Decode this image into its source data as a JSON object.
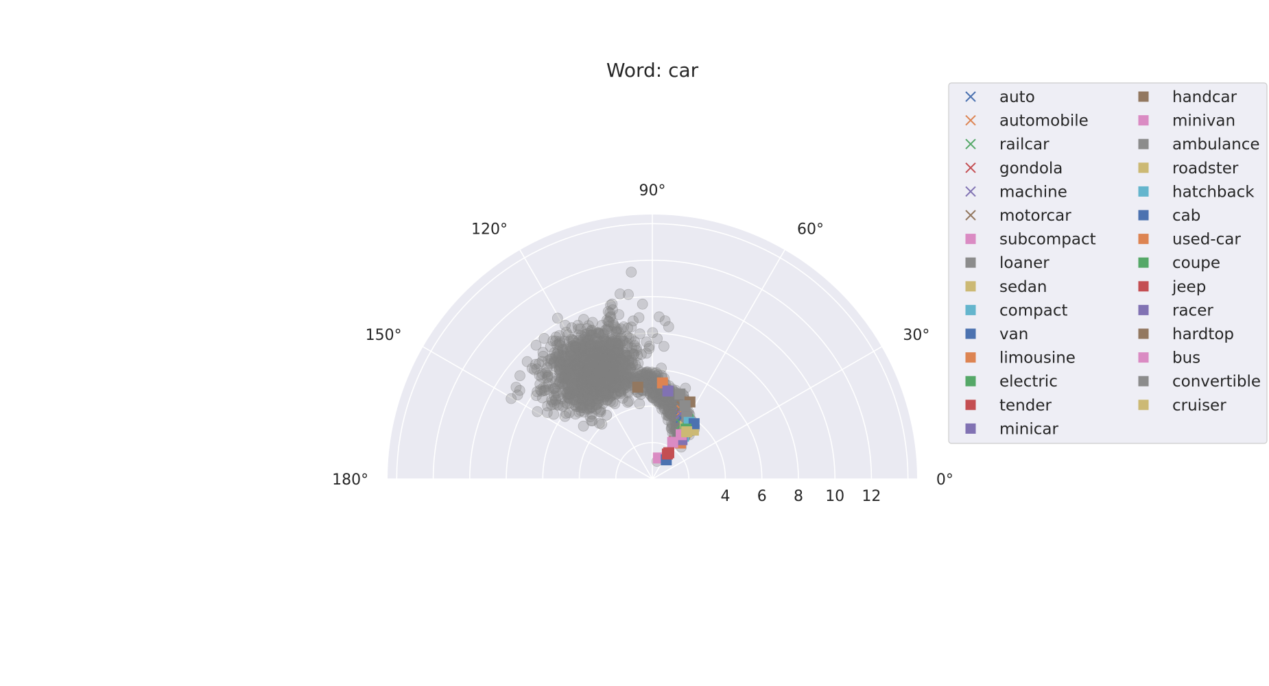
{
  "chart_data": {
    "type": "scatter",
    "projection": "polar",
    "title": "Word: car",
    "theta_range_deg": [
      0,
      180
    ],
    "r_range": [
      0,
      14.5
    ],
    "r_ticks": [
      4,
      6,
      8,
      10,
      12
    ],
    "theta_ticks_deg": [
      0,
      30,
      60,
      90,
      120,
      150,
      180
    ],
    "theta_tick_labels": [
      "0°",
      "30°",
      "60°",
      "90°",
      "120°",
      "150°",
      "180°"
    ],
    "grid": true,
    "legend_position": "outside-right",
    "legend_columns": 2,
    "background_points": {
      "color": "#808080",
      "marker": "circle",
      "opacity": 0.3,
      "count_estimate": 3000,
      "cluster_center_theta_deg": 118,
      "cluster_center_r": 7.2,
      "outliers": [
        {
          "theta": 95.8,
          "r": 11.4
        },
        {
          "theta": 99.9,
          "r": 10.3
        },
        {
          "theta": 97.4,
          "r": 10.2
        },
        {
          "theta": 93.2,
          "r": 9.6
        },
        {
          "theta": 103.5,
          "r": 9.8
        },
        {
          "theta": 101.5,
          "r": 9.2
        },
        {
          "theta": 104.3,
          "r": 9.4
        },
        {
          "theta": 87.6,
          "r": 8.9
        },
        {
          "theta": 85.4,
          "r": 8.7
        },
        {
          "theta": 83.9,
          "r": 8.4
        },
        {
          "theta": 131.6,
          "r": 9.0
        },
        {
          "theta": 136.8,
          "r": 9.4
        },
        {
          "theta": 142.0,
          "r": 9.2
        },
        {
          "theta": 146.0,
          "r": 9.0
        },
        {
          "theta": 150.3,
          "r": 8.9
        },
        {
          "theta": 148.0,
          "r": 8.7
        },
        {
          "theta": 126.4,
          "r": 8.7
        },
        {
          "theta": 113.4,
          "r": 8.6
        },
        {
          "theta": 110.4,
          "r": 7.8
        },
        {
          "theta": 145.1,
          "r": 7.0
        },
        {
          "theta": 135.9,
          "r": 6.4
        },
        {
          "theta": 149.6,
          "r": 7.3
        },
        {
          "theta": 134.6,
          "r": 5.9
        },
        {
          "theta": 75.5,
          "r": 1.0
        },
        {
          "theta": 77.8,
          "r": 4.1
        },
        {
          "theta": 85.0,
          "r": 7.3
        },
        {
          "theta": 88.0,
          "r": 7.7
        },
        {
          "theta": 70.0,
          "r": 5.3
        },
        {
          "theta": 66.0,
          "r": 4.6
        },
        {
          "theta": 60.0,
          "r": 3.3
        }
      ]
    },
    "series": [
      {
        "name": "auto",
        "marker": "x",
        "color": "#4c72b0",
        "points": [
          {
            "theta": 65.0,
            "r": 3.7
          }
        ]
      },
      {
        "name": "automobile",
        "marker": "x",
        "color": "#dd8452",
        "points": [
          {
            "theta": 67.0,
            "r": 4.1
          }
        ]
      },
      {
        "name": "railcar",
        "marker": "x",
        "color": "#55a868",
        "points": [
          {
            "theta": 62.0,
            "r": 3.4
          }
        ]
      },
      {
        "name": "gondola",
        "marker": "x",
        "color": "#c44e52",
        "points": [
          {
            "theta": 60.0,
            "r": 2.4
          }
        ]
      },
      {
        "name": "machine",
        "marker": "x",
        "color": "#8172b3",
        "points": [
          {
            "theta": 66.5,
            "r": 3.9
          }
        ]
      },
      {
        "name": "motorcar",
        "marker": "x",
        "color": "#937860",
        "points": [
          {
            "theta": 68.0,
            "r": 4.3
          }
        ]
      },
      {
        "name": "subcompact",
        "marker": "square",
        "color": "#da8bc3",
        "points": [
          {
            "theta": 74.0,
            "r": 1.2
          }
        ]
      },
      {
        "name": "loaner",
        "marker": "square",
        "color": "#8c8c8c",
        "points": [
          {
            "theta": 72.0,
            "r": 4.9
          }
        ]
      },
      {
        "name": "sedan",
        "marker": "square",
        "color": "#ccb974",
        "points": [
          {
            "theta": 58.0,
            "r": 3.4
          }
        ]
      },
      {
        "name": "compact",
        "marker": "square",
        "color": "#64b5cd",
        "points": [
          {
            "theta": 54.0,
            "r": 2.9
          }
        ]
      },
      {
        "name": "van",
        "marker": "square",
        "color": "#4c72b0",
        "points": [
          {
            "theta": 54.0,
            "r": 1.3
          }
        ]
      },
      {
        "name": "limousine",
        "marker": "square",
        "color": "#dd8452",
        "points": [
          {
            "theta": 52.0,
            "r": 2.5
          }
        ]
      },
      {
        "name": "electric",
        "marker": "square",
        "color": "#55a868",
        "points": [
          {
            "theta": 59.0,
            "r": 3.8
          }
        ]
      },
      {
        "name": "tender",
        "marker": "square",
        "color": "#c44e52",
        "points": [
          {
            "theta": 59.0,
            "r": 1.6
          }
        ]
      },
      {
        "name": "minicar",
        "marker": "square",
        "color": "#8172b3",
        "points": [
          {
            "theta": 53.0,
            "r": 2.7
          }
        ]
      },
      {
        "name": "handcar",
        "marker": "square",
        "color": "#937860",
        "points": [
          {
            "theta": 99.0,
            "r": 5.1
          }
        ]
      },
      {
        "name": "minivan",
        "marker": "square",
        "color": "#da8bc3",
        "points": [
          {
            "theta": 61.0,
            "r": 2.3
          }
        ]
      },
      {
        "name": "ambulance",
        "marker": "square",
        "color": "#8c8c8c",
        "points": [
          {
            "theta": 61.0,
            "r": 3.9
          }
        ]
      },
      {
        "name": "roadster",
        "marker": "square",
        "color": "#ccb974",
        "points": [
          {
            "theta": 50.0,
            "r": 3.5
          }
        ]
      },
      {
        "name": "hatchback",
        "marker": "square",
        "color": "#64b5cd",
        "points": [
          {
            "theta": 57.0,
            "r": 3.7
          }
        ]
      },
      {
        "name": "cab",
        "marker": "square",
        "color": "#4c72b0",
        "points": [
          {
            "theta": 53.0,
            "r": 3.8
          }
        ]
      },
      {
        "name": "used-car",
        "marker": "square",
        "color": "#dd8452",
        "points": [
          {
            "theta": 84.0,
            "r": 5.3
          }
        ]
      },
      {
        "name": "coupe",
        "marker": "square",
        "color": "#55a868",
        "points": [
          {
            "theta": 56.0,
            "r": 3.3
          }
        ]
      },
      {
        "name": "jeep",
        "marker": "square",
        "color": "#c44e52",
        "points": [
          {
            "theta": 58.0,
            "r": 1.7
          }
        ]
      },
      {
        "name": "racer",
        "marker": "square",
        "color": "#8172b3",
        "points": [
          {
            "theta": 80.0,
            "r": 4.9
          }
        ]
      },
      {
        "name": "hardtop",
        "marker": "square",
        "color": "#937860",
        "points": [
          {
            "theta": 64.0,
            "r": 4.7
          }
        ]
      },
      {
        "name": "bus",
        "marker": "square",
        "color": "#da8bc3",
        "points": [
          {
            "theta": 57.0,
            "r": 2.9
          }
        ]
      },
      {
        "name": "convertible",
        "marker": "square",
        "color": "#8c8c8c",
        "points": [
          {
            "theta": 66.0,
            "r": 4.4
          }
        ]
      },
      {
        "name": "cruiser",
        "marker": "square",
        "color": "#ccb974",
        "points": [
          {
            "theta": 54.0,
            "r": 3.2
          }
        ]
      }
    ]
  },
  "colors": {
    "axes_background": "#eaeaf2",
    "grid": "#ffffff",
    "text": "#262626",
    "legend_border": "#cccccc"
  }
}
